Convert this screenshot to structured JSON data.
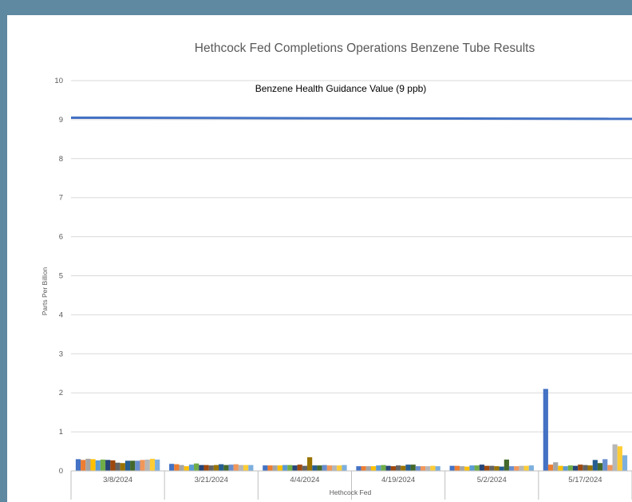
{
  "chart_data": {
    "type": "bar",
    "title": "Hethcock Fed Completions Operations Benzene Tube Results",
    "xlabel": "Hethcock Fed",
    "ylabel": "Parts Per Billion",
    "ylim": [
      0,
      10
    ],
    "yticks": [
      0,
      1,
      2,
      3,
      4,
      5,
      6,
      7,
      8,
      9,
      10
    ],
    "grid": true,
    "legend": "none",
    "categories": [
      "3/8/2024",
      "3/21/2024",
      "4/4/2024",
      "4/19/2024",
      "5/2/2024",
      "5/17/2024"
    ],
    "series_colors": [
      "#4472c4",
      "#ed7d31",
      "#a5a5a5",
      "#ffc000",
      "#5b9bd5",
      "#70ad47",
      "#264478",
      "#9e480e",
      "#636363",
      "#997300",
      "#255e91",
      "#43682b",
      "#698ed0",
      "#f1975a",
      "#b7b7b7",
      "#ffcd33",
      "#7cafdd"
    ],
    "series": [
      {
        "values": [
          0.3,
          0.18,
          0.14,
          0.12,
          0.13,
          2.1
        ]
      },
      {
        "values": [
          0.28,
          0.17,
          0.14,
          0.12,
          0.13,
          0.16
        ]
      },
      {
        "values": [
          0.31,
          0.15,
          0.14,
          0.12,
          0.12,
          0.22
        ]
      },
      {
        "values": [
          0.3,
          0.12,
          0.14,
          0.12,
          0.11,
          0.13
        ]
      },
      {
        "values": [
          0.27,
          0.16,
          0.15,
          0.14,
          0.14,
          0.12
        ]
      },
      {
        "values": [
          0.29,
          0.19,
          0.15,
          0.15,
          0.14,
          0.14
        ]
      },
      {
        "values": [
          0.28,
          0.15,
          0.14,
          0.13,
          0.16,
          0.13
        ]
      },
      {
        "values": [
          0.27,
          0.15,
          0.16,
          0.12,
          0.13,
          0.16
        ]
      },
      {
        "values": [
          0.21,
          0.14,
          0.13,
          0.14,
          0.13,
          0.15
        ]
      },
      {
        "values": [
          0.2,
          0.15,
          0.35,
          0.13,
          0.12,
          0.14
        ]
      },
      {
        "values": [
          0.26,
          0.17,
          0.14,
          0.16,
          0.11,
          0.28
        ]
      },
      {
        "values": [
          0.26,
          0.15,
          0.14,
          0.16,
          0.29,
          0.2
        ]
      },
      {
        "values": [
          0.26,
          0.16,
          0.15,
          0.12,
          0.12,
          0.3
        ]
      },
      {
        "values": [
          0.28,
          0.17,
          0.14,
          0.12,
          0.12,
          0.15
        ]
      },
      {
        "values": [
          0.29,
          0.15,
          0.14,
          0.12,
          0.13,
          0.68
        ]
      },
      {
        "values": [
          0.31,
          0.15,
          0.14,
          0.13,
          0.13,
          0.63
        ]
      },
      {
        "values": [
          0.29,
          0.15,
          0.15,
          0.12,
          0.14,
          0.4
        ]
      }
    ],
    "reference_line": {
      "label": "Benzene Health Guidance Value (9 ppb)",
      "y_start": 9.05,
      "y_end": 9.02,
      "color": "#4472c4"
    }
  }
}
